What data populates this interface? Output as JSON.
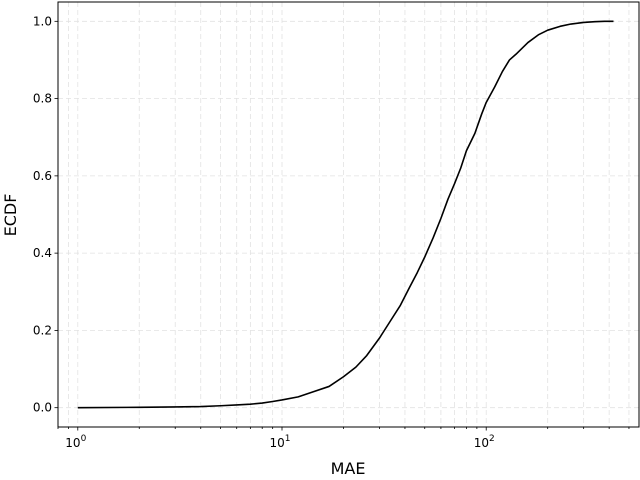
{
  "chart_data": {
    "type": "line",
    "xlabel": "MAE",
    "ylabel": "ECDF",
    "xscale": "log",
    "xlim": [
      0.8,
      560
    ],
    "ylim": [
      -0.05,
      1.05
    ],
    "grid": true,
    "grid_style": "dashed",
    "x_tick_labels": [
      {
        "value": 1,
        "base": "10",
        "exp": "0"
      },
      {
        "value": 10,
        "base": "10",
        "exp": "1"
      },
      {
        "value": 100,
        "base": "10",
        "exp": "2"
      }
    ],
    "y_tick_labels": [
      {
        "value": 0.0,
        "text": "0.0"
      },
      {
        "value": 0.2,
        "text": "0.2"
      },
      {
        "value": 0.4,
        "text": "0.4"
      },
      {
        "value": 0.6,
        "text": "0.6"
      },
      {
        "value": 0.8,
        "text": "0.8"
      },
      {
        "value": 1.0,
        "text": "1.0"
      }
    ],
    "series": [
      {
        "color": "#000000",
        "x": [
          1.0,
          2.0,
          3.0,
          4.0,
          5.0,
          6.0,
          7.0,
          8.0,
          9.0,
          10.0,
          12.0,
          14.0,
          17.0,
          20.0,
          23.0,
          26.0,
          30.0,
          34.0,
          38.0,
          42.0,
          46.0,
          50.0,
          55.0,
          60.0,
          65.0,
          70.0,
          75.0,
          80.0,
          88.0,
          95.0,
          100.0,
          110.0,
          120.0,
          130.0,
          140.0,
          160.0,
          180.0,
          200.0,
          230.0,
          260.0,
          300.0,
          340.0,
          380.0,
          420.0
        ],
        "y": [
          0.0,
          0.001,
          0.002,
          0.003,
          0.005,
          0.007,
          0.009,
          0.012,
          0.016,
          0.02,
          0.028,
          0.04,
          0.055,
          0.08,
          0.105,
          0.135,
          0.18,
          0.225,
          0.265,
          0.31,
          0.35,
          0.39,
          0.44,
          0.49,
          0.54,
          0.58,
          0.62,
          0.665,
          0.71,
          0.76,
          0.79,
          0.83,
          0.87,
          0.9,
          0.915,
          0.945,
          0.965,
          0.977,
          0.987,
          0.993,
          0.997,
          0.999,
          1.0,
          1.0
        ]
      }
    ]
  }
}
